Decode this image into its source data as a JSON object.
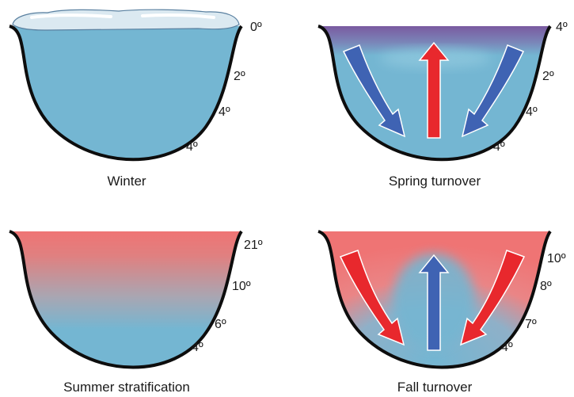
{
  "panels": {
    "winter": {
      "caption": "Winter",
      "temps": [
        "0º",
        "2º",
        "4º",
        "4º"
      ]
    },
    "spring": {
      "caption": "Spring turnover",
      "temps": [
        "4º",
        "2º",
        "4º",
        "4º"
      ]
    },
    "summer": {
      "caption": "Summer stratification",
      "temps": [
        "21º",
        "10º",
        "6º",
        "4º"
      ]
    },
    "fall": {
      "caption": "Fall turnover",
      "temps": [
        "10º",
        "8º",
        "7º",
        "4º"
      ]
    }
  },
  "colors": {
    "cold_water": "#74b6d2",
    "warm_water": "#ef7474",
    "cold_surface": "#7a5aa0",
    "ice": "#dbe9f1",
    "arrow_blue": "#3f63b3",
    "arrow_red": "#e8282d",
    "outline": "#0d0d0d"
  },
  "icons": {
    "downwelling": "blue-down-arrow",
    "upwelling_spring": "red-up-arrow",
    "upwelling_fall": "blue-up-arrow",
    "sinking_warm": "red-down-arrow"
  }
}
